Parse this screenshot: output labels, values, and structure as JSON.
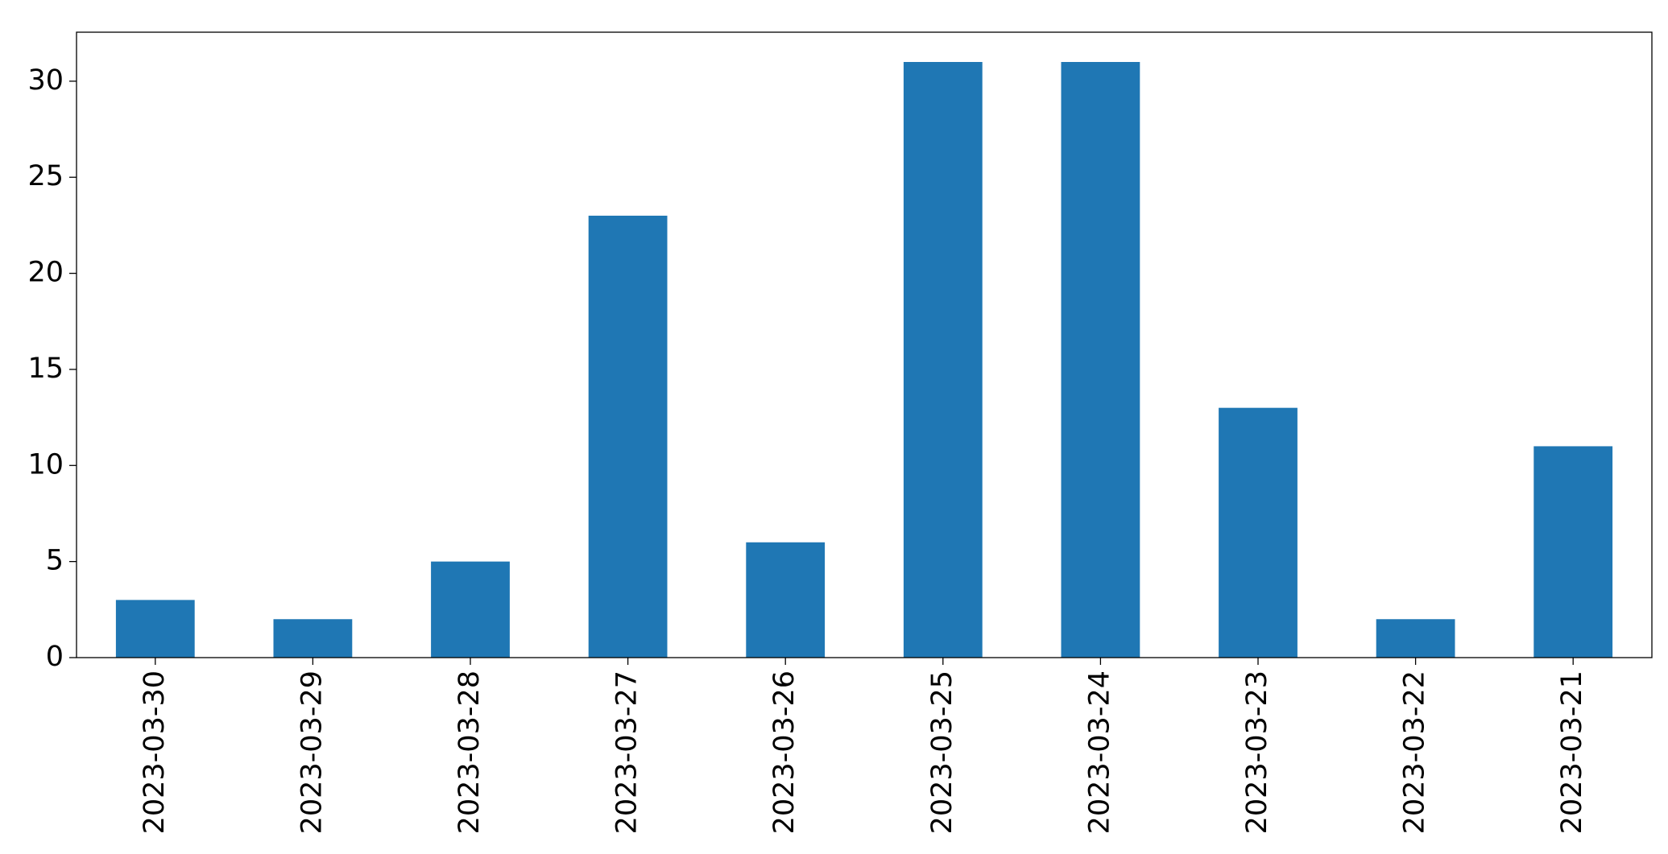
{
  "chart_data": {
    "type": "bar",
    "categories": [
      "2023-03-30",
      "2023-03-29",
      "2023-03-28",
      "2023-03-27",
      "2023-03-26",
      "2023-03-25",
      "2023-03-24",
      "2023-03-23",
      "2023-03-22",
      "2023-03-21"
    ],
    "values": [
      3,
      2,
      5,
      23,
      6,
      31,
      31,
      13,
      2,
      11
    ],
    "color": "#1f77b4",
    "ylim": [
      0,
      32.55
    ],
    "yticks": [
      0,
      5,
      10,
      15,
      20,
      25,
      30
    ],
    "grid": false
  }
}
